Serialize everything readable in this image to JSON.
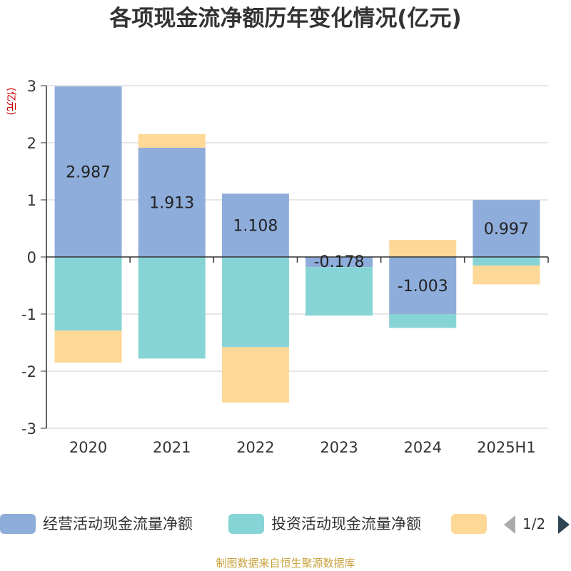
{
  "title": "各项现金流净额历年变化情况(亿元)",
  "source": "制图数据来自恒生聚源数据库",
  "legend": {
    "items": [
      {
        "label": "经营活动现金流量净额",
        "color": "#8eaddb"
      },
      {
        "label": "投资活动现金流量净额",
        "color": "#87d4d6"
      },
      {
        "label": "",
        "color": "#fed897"
      }
    ],
    "page": "1/2"
  },
  "chart_data": {
    "type": "bar",
    "stacked": true,
    "title": "各项现金流净额历年变化情况(亿元)",
    "ylabel": "(亿元)",
    "ylim": [
      -3,
      3
    ],
    "yticks": [
      3,
      2,
      1,
      0,
      -1,
      -2,
      -3
    ],
    "categories": [
      "2020",
      "2021",
      "2022",
      "2023",
      "2024",
      "2025H1"
    ],
    "grid": true,
    "legend_position": "bottom",
    "series": [
      {
        "name": "经营活动现金流量净额",
        "color": "#8eaddb",
        "values": [
          2.987,
          1.913,
          1.108,
          -0.178,
          -1.003,
          0.997
        ],
        "labels": true
      },
      {
        "name": "投资活动现金流量净额",
        "color": "#87d4d6",
        "values": [
          -1.29,
          -1.78,
          -1.58,
          -0.85,
          -0.24,
          -0.15
        ],
        "labels": false
      },
      {
        "color": "#fed897",
        "values": [
          -0.56,
          0.24,
          -0.97,
          0,
          0.3,
          -0.33
        ],
        "labels": false
      }
    ]
  }
}
